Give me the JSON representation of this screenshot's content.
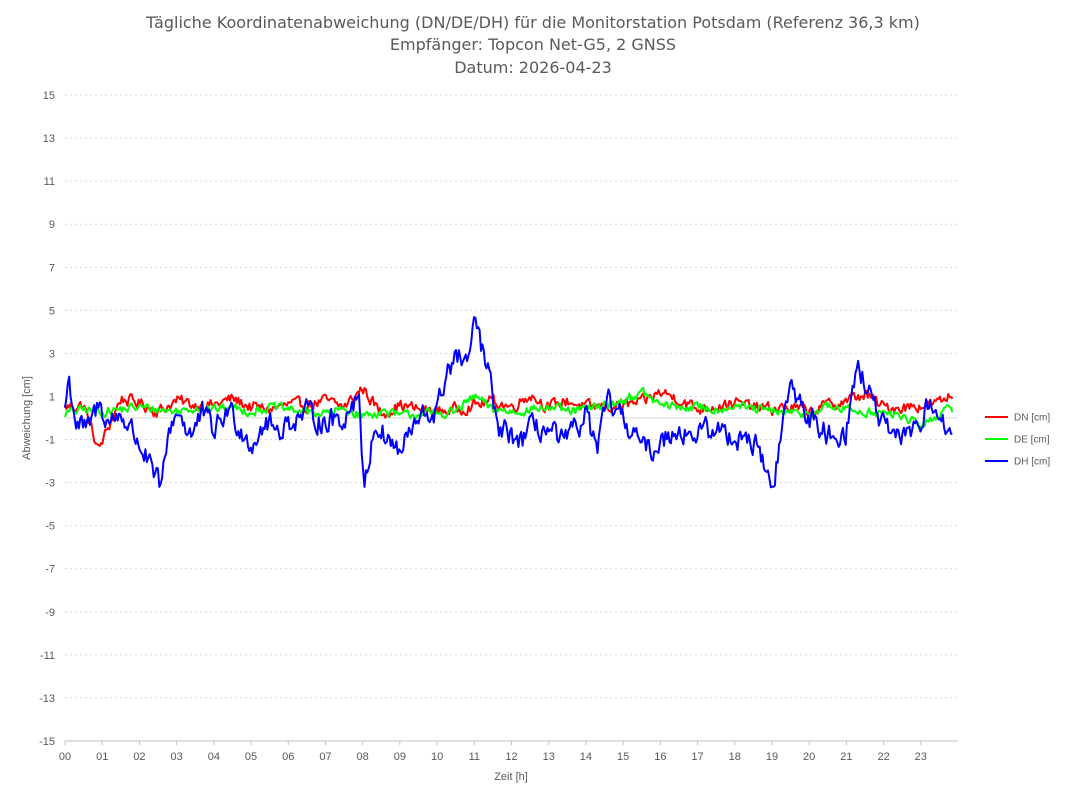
{
  "chart_data": {
    "type": "line",
    "title_lines": [
      "Tägliche Koordinatenabweichung (DN/DE/DH) für die Monitorstation Potsdam (Referenz 36,3 km)",
      "Empfänger: Topcon Net-G5, 2 GNSS",
      "Datum: 2026-04-23"
    ],
    "xlabel": "Zeit [h]",
    "ylabel": "Abweichung [cm]",
    "xlim": [
      0,
      24
    ],
    "ylim": [
      -15,
      15
    ],
    "x_ticks": [
      "00",
      "01",
      "02",
      "03",
      "04",
      "05",
      "06",
      "07",
      "08",
      "09",
      "10",
      "11",
      "12",
      "13",
      "14",
      "15",
      "16",
      "17",
      "18",
      "19",
      "20",
      "21",
      "22",
      "23"
    ],
    "y_ticks": [
      "15",
      "13",
      "11",
      "9",
      "7",
      "5",
      "3",
      "1",
      "-1",
      "-3",
      "-5",
      "-7",
      "-9",
      "-11",
      "-13",
      "-15"
    ],
    "grid": true,
    "legend_position": "right",
    "series": [
      {
        "name": "DN [cm]",
        "color": "#ff0000",
        "anchors_x": [
          0,
          0.5,
          0.9,
          1.5,
          2,
          2.5,
          3,
          3.5,
          4,
          4.5,
          5,
          5.5,
          6,
          6.5,
          7,
          7.5,
          8,
          8.5,
          9,
          9.5,
          10,
          10.5,
          11,
          11.5,
          12,
          12.5,
          13,
          13.5,
          14,
          14.5,
          15,
          15.5,
          16,
          16.5,
          17,
          17.5,
          18,
          18.5,
          19,
          19.5,
          20,
          20.5,
          21,
          21.5,
          22,
          22.5,
          23,
          23.5,
          23.85
        ],
        "anchors_y": [
          0.5,
          0.6,
          -1.5,
          0.9,
          0.7,
          0.3,
          0.8,
          0.6,
          0.6,
          0.9,
          0.5,
          0.4,
          0.6,
          0.6,
          0.8,
          0.5,
          1.4,
          0.2,
          0.6,
          0.4,
          0.3,
          0.4,
          0.6,
          0.8,
          0.5,
          1.1,
          0.5,
          0.8,
          0.5,
          0.5,
          0.6,
          0.7,
          1.2,
          0.9,
          0.4,
          0.6,
          0.7,
          0.5,
          0.4,
          0.5,
          0.3,
          0.6,
          0.8,
          1.1,
          0.5,
          0.5,
          0.6,
          0.7,
          1.1
        ],
        "amp": 0.45
      },
      {
        "name": "DE [cm]",
        "color": "#00ff00",
        "anchors_x": [
          0,
          0.5,
          1,
          1.5,
          2,
          2.5,
          3,
          3.5,
          4,
          4.5,
          5,
          5.5,
          6,
          6.5,
          7,
          7.5,
          8,
          8.5,
          9,
          9.5,
          10,
          10.5,
          11,
          11.5,
          12,
          12.5,
          13,
          13.5,
          14,
          14.5,
          15,
          15.5,
          16,
          16.5,
          17,
          17.5,
          18,
          18.5,
          19,
          19.5,
          20,
          20.5,
          21,
          21.5,
          22,
          22.5,
          23,
          23.5,
          23.85
        ],
        "anchors_y": [
          0.2,
          0.4,
          0.3,
          0.4,
          0.5,
          0.4,
          0.3,
          0.5,
          0.4,
          0.5,
          0.3,
          0.5,
          0.4,
          0.3,
          0.2,
          0.4,
          0.1,
          0.3,
          0.1,
          0.2,
          0.2,
          0.3,
          1.0,
          0.4,
          0.3,
          0.4,
          0.5,
          0.3,
          0.4,
          0.6,
          0.8,
          1.2,
          0.6,
          0.5,
          0.5,
          0.4,
          0.6,
          0.4,
          0.3,
          0.2,
          0.2,
          0.5,
          0.4,
          0.3,
          0.2,
          0.1,
          -0.4,
          0.2,
          0.4
        ],
        "amp": 0.35
      },
      {
        "name": "DH [cm]",
        "color": "#0000ff",
        "anchors_x": [
          0,
          0.1,
          0.3,
          0.6,
          0.9,
          1.2,
          1.5,
          1.8,
          2.1,
          2.4,
          2.6,
          2.8,
          3.0,
          3.4,
          3.7,
          4.0,
          4.4,
          4.7,
          5.0,
          5.4,
          5.7,
          6.0,
          6.5,
          7.0,
          7.5,
          7.9,
          8.05,
          8.3,
          8.6,
          9.0,
          9.3,
          9.6,
          10.0,
          10.3,
          10.6,
          10.9,
          11.0,
          11.2,
          11.4,
          11.6,
          11.9,
          12.3,
          12.6,
          13.0,
          13.4,
          13.7,
          14.0,
          14.3,
          14.6,
          15.0,
          15.3,
          15.6,
          16.0,
          16.4,
          16.8,
          17.2,
          17.6,
          18.0,
          18.3,
          18.7,
          19.0,
          19.3,
          19.5,
          19.8,
          20.2,
          20.6,
          21.0,
          21.3,
          21.5,
          21.7,
          22.0,
          22.3,
          22.6,
          23.0,
          23.3,
          23.6,
          23.85
        ],
        "anchors_y": [
          0.5,
          1.8,
          -0.2,
          -0.6,
          0.6,
          -0.2,
          0.2,
          -0.6,
          -1.5,
          -2.8,
          -3.2,
          -0.6,
          0.4,
          -0.8,
          0.2,
          -0.6,
          0.4,
          -0.4,
          -1.2,
          -0.2,
          -0.6,
          -0.2,
          0.2,
          -0.2,
          0.0,
          1.2,
          -3.5,
          -0.3,
          -0.8,
          -1.6,
          -0.6,
          0.0,
          0.3,
          2.4,
          2.8,
          2.5,
          4.8,
          3.2,
          2.0,
          -0.4,
          -0.8,
          -1.0,
          -0.4,
          -0.6,
          -1.2,
          -0.6,
          0.2,
          -1.5,
          0.8,
          -0.2,
          -0.6,
          -1.6,
          -1.2,
          -0.4,
          -0.8,
          -0.6,
          -0.6,
          -0.9,
          -0.8,
          -1.6,
          -3.5,
          -0.2,
          1.5,
          0.6,
          -0.4,
          -0.8,
          -0.6,
          2.6,
          1.5,
          0.8,
          -0.4,
          -1.2,
          -0.6,
          -0.2,
          0.8,
          -0.2,
          -1.4
        ],
        "amp": 0.9
      }
    ]
  }
}
